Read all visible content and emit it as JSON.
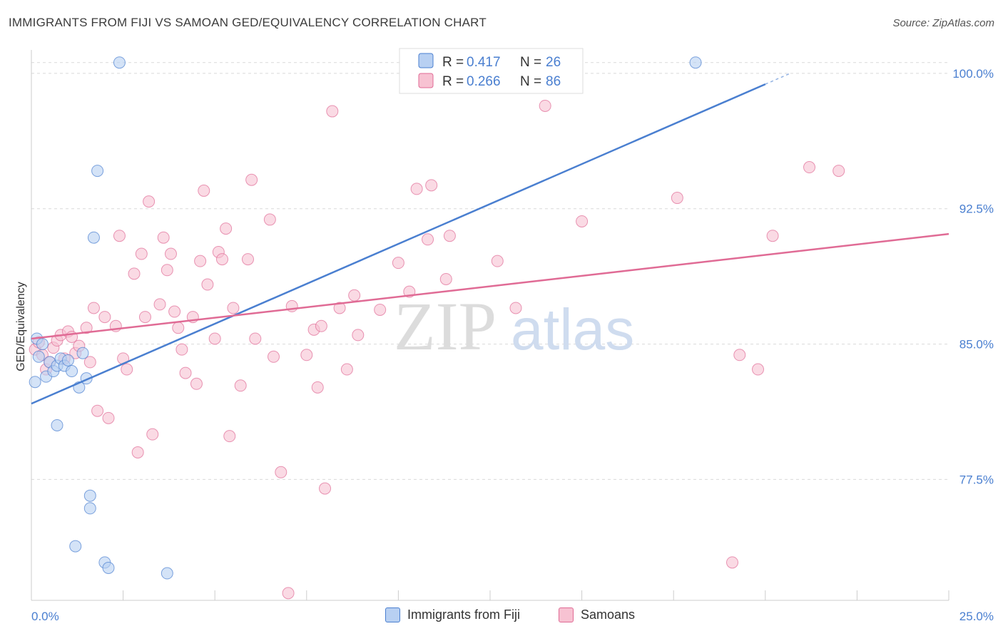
{
  "header": {
    "title": "IMMIGRANTS FROM FIJI VS SAMOAN GED/EQUIVALENCY CORRELATION CHART",
    "source": "Source: ZipAtlas.com"
  },
  "watermark": {
    "zip": "ZIP",
    "atlas": "atlas"
  },
  "colors": {
    "fiji": "#4a7fd0",
    "fiji_fill": "#b8d0f2",
    "samoan": "#e06b95",
    "samoan_fill": "#f7c2d2",
    "grid": "#d9d9d9",
    "axis_label": "#4a7fd0"
  },
  "chart_data": {
    "type": "scatter",
    "title": "IMMIGRANTS FROM FIJI VS SAMOAN GED/EQUIVALENCY CORRELATION CHART",
    "xlabel": "",
    "ylabel": "GED/Equivalency",
    "xlim": [
      0,
      25
    ],
    "ylim": [
      70.8,
      101.3
    ],
    "x_tick_labels": [
      "0.0%",
      "25.0%"
    ],
    "y_ticks": [
      77.5,
      85.0,
      92.5,
      100.0
    ],
    "y_tick_labels": [
      "77.5%",
      "85.0%",
      "92.5%",
      "100.0%"
    ],
    "grid": true,
    "legend_position": "top-center",
    "stats_legend": [
      {
        "r_label": "R =",
        "r_value": "0.417",
        "n_label": "N =",
        "n_value": "26"
      },
      {
        "r_label": "R =",
        "r_value": "0.266",
        "n_label": "N =",
        "n_value": "86"
      }
    ],
    "series": [
      {
        "name": "Immigrants from Fiji",
        "trend": {
          "x": [
            0,
            20.0
          ],
          "y": [
            81.7,
            99.4
          ],
          "dashed_extension_x": [
            20.0,
            20.7
          ]
        },
        "points": [
          [
            0.1,
            82.9
          ],
          [
            0.15,
            85.3
          ],
          [
            0.2,
            84.3
          ],
          [
            0.3,
            85.0
          ],
          [
            0.4,
            83.2
          ],
          [
            0.5,
            84.0
          ],
          [
            0.6,
            83.5
          ],
          [
            0.7,
            83.8
          ],
          [
            0.8,
            84.2
          ],
          [
            0.9,
            83.8
          ],
          [
            1.1,
            83.5
          ],
          [
            1.4,
            84.5
          ],
          [
            1.5,
            83.1
          ],
          [
            1.3,
            82.6
          ],
          [
            0.7,
            80.5
          ],
          [
            1.8,
            94.6
          ],
          [
            1.7,
            90.9
          ],
          [
            1.6,
            76.6
          ],
          [
            1.6,
            75.9
          ],
          [
            1.2,
            73.8
          ],
          [
            2.0,
            72.9
          ],
          [
            2.1,
            72.6
          ],
          [
            3.7,
            72.3
          ],
          [
            2.4,
            100.6
          ],
          [
            18.1,
            100.6
          ],
          [
            1.0,
            84.1
          ]
        ]
      },
      {
        "name": "Samoans",
        "trend": {
          "x": [
            0,
            25.0
          ],
          "y": [
            85.3,
            91.1
          ]
        },
        "points": [
          [
            0.1,
            84.7
          ],
          [
            0.2,
            85.1
          ],
          [
            0.3,
            84.4
          ],
          [
            0.4,
            83.6
          ],
          [
            0.5,
            84.0
          ],
          [
            0.6,
            84.8
          ],
          [
            0.7,
            85.2
          ],
          [
            0.8,
            85.5
          ],
          [
            0.9,
            84.2
          ],
          [
            1.0,
            85.7
          ],
          [
            1.1,
            85.4
          ],
          [
            1.2,
            84.5
          ],
          [
            1.3,
            84.9
          ],
          [
            1.5,
            85.9
          ],
          [
            1.6,
            84.0
          ],
          [
            1.7,
            87.0
          ],
          [
            1.8,
            81.3
          ],
          [
            2.0,
            86.5
          ],
          [
            2.1,
            80.9
          ],
          [
            2.3,
            86.0
          ],
          [
            2.4,
            91.0
          ],
          [
            2.5,
            84.2
          ],
          [
            2.6,
            83.6
          ],
          [
            2.8,
            88.9
          ],
          [
            2.9,
            79.0
          ],
          [
            3.0,
            90.0
          ],
          [
            3.1,
            86.5
          ],
          [
            3.2,
            92.9
          ],
          [
            3.3,
            80.0
          ],
          [
            3.5,
            87.2
          ],
          [
            3.6,
            90.9
          ],
          [
            3.7,
            89.1
          ],
          [
            3.8,
            90.0
          ],
          [
            3.9,
            86.8
          ],
          [
            4.0,
            85.9
          ],
          [
            4.1,
            84.7
          ],
          [
            4.2,
            83.4
          ],
          [
            4.4,
            86.5
          ],
          [
            4.5,
            82.8
          ],
          [
            4.6,
            89.6
          ],
          [
            4.7,
            93.5
          ],
          [
            4.8,
            88.3
          ],
          [
            5.0,
            85.3
          ],
          [
            5.1,
            90.1
          ],
          [
            5.2,
            89.7
          ],
          [
            5.3,
            91.4
          ],
          [
            5.4,
            79.9
          ],
          [
            5.5,
            87.0
          ],
          [
            5.7,
            82.7
          ],
          [
            5.9,
            89.7
          ],
          [
            6.0,
            94.1
          ],
          [
            6.1,
            85.3
          ],
          [
            6.5,
            91.9
          ],
          [
            6.6,
            84.3
          ],
          [
            6.8,
            77.9
          ],
          [
            7.0,
            71.2
          ],
          [
            7.1,
            87.1
          ],
          [
            7.5,
            84.4
          ],
          [
            7.7,
            85.8
          ],
          [
            7.8,
            82.6
          ],
          [
            7.9,
            86.0
          ],
          [
            8.0,
            77.0
          ],
          [
            8.2,
            97.9
          ],
          [
            8.4,
            87.0
          ],
          [
            8.6,
            83.6
          ],
          [
            8.9,
            85.5
          ],
          [
            8.8,
            87.7
          ],
          [
            9.5,
            86.9
          ],
          [
            10.0,
            89.5
          ],
          [
            10.3,
            87.9
          ],
          [
            10.5,
            93.6
          ],
          [
            10.8,
            90.8
          ],
          [
            10.9,
            93.8
          ],
          [
            11.3,
            88.6
          ],
          [
            11.4,
            91.0
          ],
          [
            12.7,
            89.6
          ],
          [
            13.2,
            87.0
          ],
          [
            14.0,
            98.2
          ],
          [
            15.0,
            91.8
          ],
          [
            17.6,
            93.1
          ],
          [
            19.1,
            72.9
          ],
          [
            19.3,
            84.4
          ],
          [
            19.8,
            83.6
          ],
          [
            20.2,
            91.0
          ],
          [
            21.2,
            94.8
          ],
          [
            22.0,
            94.6
          ]
        ]
      }
    ]
  },
  "bottom_legend": [
    "Immigrants from Fiji",
    "Samoans"
  ]
}
